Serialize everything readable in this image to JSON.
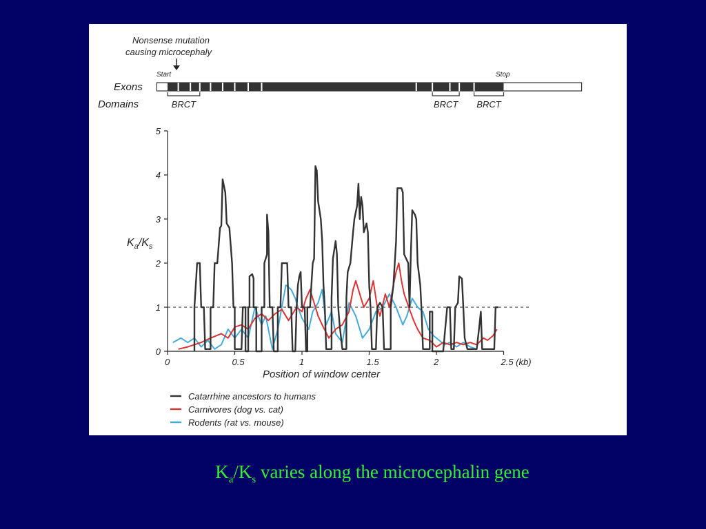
{
  "colors": {
    "background": "#020266",
    "caption": "#33ee33",
    "catarrhine": "#333333",
    "carnivores": "#dd3333",
    "rodents": "#44aadd"
  },
  "caption": {
    "main": "K",
    "sub_a": "a",
    "slash": "/K",
    "sub_s": "s",
    "rest": " varies along the microcephalin gene"
  },
  "gene_map": {
    "annotation_line1": "Nonsense mutation",
    "annotation_line2": "causing microcephaly",
    "start_label": "Start",
    "stop_label": "Stop",
    "exons_label": "Exons",
    "domains_label": "Domains",
    "domain_labels": [
      "BRCT",
      "BRCT",
      "BRCT"
    ],
    "coding_span_kb": [
      0,
      2.5
    ],
    "transcript_span_kb": [
      -0.08,
      3.08
    ],
    "exon_boundaries_kb": [
      0.08,
      0.17,
      0.24,
      0.32,
      0.41,
      0.5,
      0.6,
      0.7,
      1.85,
      1.97,
      2.1,
      2.17,
      2.28
    ],
    "domains_kb": [
      [
        0.0,
        0.24
      ],
      [
        1.97,
        2.17
      ],
      [
        2.28,
        2.5
      ]
    ],
    "mutation_kb": 0.07
  },
  "chart_data": {
    "type": "line",
    "title": "",
    "xlabel": "Position of window center",
    "ylabel_main": "K",
    "ylabel_sub1": "a",
    "ylabel_mid": "/K",
    "ylabel_sub2": "s",
    "xlim": [
      0,
      2.5
    ],
    "ylim": [
      0,
      5
    ],
    "x_ticks": [
      0,
      0.5,
      1,
      1.5,
      2,
      2.5
    ],
    "x_tick_labels": [
      "0",
      "0.5",
      "1",
      "1.5",
      "2",
      "2.5 (kb)"
    ],
    "y_ticks": [
      0,
      1,
      2,
      3,
      4,
      5
    ],
    "y_tick_labels": [
      "0",
      "1",
      "2",
      "3",
      "4",
      "5"
    ],
    "reference_line_y": 1,
    "legend_position": "bottom-left",
    "series": [
      {
        "name": "Catarrhine ancestors to humans",
        "color": "#333333",
        "points": [
          [
            0.2,
            0
          ],
          [
            0.2,
            1.0
          ],
          [
            0.22,
            2.0
          ],
          [
            0.24,
            2.0
          ],
          [
            0.25,
            1.0
          ],
          [
            0.27,
            1.0
          ],
          [
            0.28,
            0.05
          ],
          [
            0.32,
            0.05
          ],
          [
            0.32,
            1.0
          ],
          [
            0.34,
            1.0
          ],
          [
            0.35,
            2.0
          ],
          [
            0.37,
            2.0
          ],
          [
            0.39,
            2.8
          ],
          [
            0.4,
            2.85
          ],
          [
            0.41,
            3.9
          ],
          [
            0.43,
            3.6
          ],
          [
            0.44,
            2.9
          ],
          [
            0.46,
            2.8
          ],
          [
            0.48,
            2.0
          ],
          [
            0.49,
            1.0
          ],
          [
            0.5,
            1.0
          ],
          [
            0.5,
            0.05
          ],
          [
            0.55,
            0.05
          ],
          [
            0.56,
            1.0
          ],
          [
            0.58,
            1.0
          ],
          [
            0.58,
            0.0
          ],
          [
            0.6,
            0.0
          ],
          [
            0.6,
            1.0
          ],
          [
            0.61,
            1.0
          ],
          [
            0.61,
            1.7
          ],
          [
            0.63,
            1.75
          ],
          [
            0.64,
            1.65
          ],
          [
            0.64,
            1.0
          ],
          [
            0.66,
            1.0
          ],
          [
            0.66,
            0.0
          ],
          [
            0.7,
            0.0
          ],
          [
            0.7,
            1.0
          ],
          [
            0.72,
            1.0
          ],
          [
            0.72,
            2.0
          ],
          [
            0.74,
            2.2
          ],
          [
            0.74,
            3.1
          ],
          [
            0.75,
            2.7
          ],
          [
            0.76,
            1.0
          ],
          [
            0.78,
            1.0
          ],
          [
            0.79,
            0.0
          ],
          [
            0.82,
            0.0
          ],
          [
            0.82,
            1.0
          ],
          [
            0.84,
            1.0
          ],
          [
            0.85,
            2.0
          ],
          [
            0.89,
            2.0
          ],
          [
            0.9,
            1.0
          ],
          [
            0.92,
            1.0
          ],
          [
            0.93,
            0.0
          ],
          [
            0.95,
            0.0
          ],
          [
            0.96,
            1.0
          ],
          [
            0.97,
            1.5
          ],
          [
            0.98,
            1.7
          ],
          [
            0.99,
            1.8
          ],
          [
            1.0,
            1.0
          ],
          [
            1.02,
            1.0
          ],
          [
            1.03,
            0.0
          ],
          [
            1.04,
            0.0
          ],
          [
            1.04,
            1.0
          ],
          [
            1.06,
            1.0
          ],
          [
            1.08,
            2.0
          ],
          [
            1.09,
            2.1
          ],
          [
            1.1,
            4.2
          ],
          [
            1.11,
            4.1
          ],
          [
            1.12,
            3.4
          ],
          [
            1.14,
            3.0
          ],
          [
            1.15,
            2.5
          ],
          [
            1.16,
            1.5
          ],
          [
            1.17,
            1.0
          ],
          [
            1.18,
            0.05
          ],
          [
            1.22,
            0.05
          ],
          [
            1.22,
            1.2
          ],
          [
            1.23,
            2.1
          ],
          [
            1.25,
            2.5
          ],
          [
            1.26,
            2.2
          ],
          [
            1.27,
            1.0
          ],
          [
            1.28,
            0.6
          ],
          [
            1.3,
            0.05
          ],
          [
            1.33,
            0.05
          ],
          [
            1.33,
            1.2
          ],
          [
            1.34,
            1.8
          ],
          [
            1.36,
            2.0
          ],
          [
            1.38,
            2.7
          ],
          [
            1.39,
            3.0
          ],
          [
            1.41,
            3.3
          ],
          [
            1.42,
            3.8
          ],
          [
            1.43,
            3.0
          ],
          [
            1.44,
            3.5
          ],
          [
            1.45,
            3.3
          ],
          [
            1.46,
            2.7
          ],
          [
            1.48,
            2.9
          ],
          [
            1.49,
            2.7
          ],
          [
            1.5,
            1.5
          ],
          [
            1.51,
            1.0
          ],
          [
            1.52,
            0.05
          ],
          [
            1.55,
            0.05
          ],
          [
            1.56,
            1.0
          ],
          [
            1.58,
            1.1
          ],
          [
            1.6,
            1.0
          ],
          [
            1.61,
            0.05
          ],
          [
            1.66,
            0.05
          ],
          [
            1.66,
            1.0
          ],
          [
            1.68,
            1.5
          ],
          [
            1.7,
            2.5
          ],
          [
            1.71,
            3.7
          ],
          [
            1.74,
            3.7
          ],
          [
            1.75,
            3.6
          ],
          [
            1.76,
            2.2
          ],
          [
            1.79,
            2.0
          ],
          [
            1.8,
            1.0
          ],
          [
            1.81,
            2.2
          ],
          [
            1.82,
            3.2
          ],
          [
            1.84,
            3.1
          ],
          [
            1.85,
            3.0
          ],
          [
            1.86,
            2.0
          ],
          [
            1.88,
            1.5
          ],
          [
            1.89,
            0.9
          ],
          [
            1.9,
            0.05
          ],
          [
            1.95,
            0.05
          ],
          [
            1.95,
            0.9
          ],
          [
            1.97,
            0.9
          ],
          [
            1.97,
            0.0
          ],
          [
            2.05,
            0.0
          ],
          [
            2.08,
            1.0
          ],
          [
            2.1,
            1.0
          ],
          [
            2.11,
            0.05
          ],
          [
            2.13,
            0.05
          ],
          [
            2.14,
            1.0
          ],
          [
            2.16,
            1.1
          ],
          [
            2.17,
            1.7
          ],
          [
            2.19,
            1.65
          ],
          [
            2.2,
            1.0
          ],
          [
            2.21,
            0.3
          ],
          [
            2.23,
            0.05
          ],
          [
            2.3,
            0.05
          ],
          [
            2.32,
            0.6
          ],
          [
            2.33,
            0.9
          ],
          [
            2.34,
            0.05
          ],
          [
            2.43,
            0.05
          ],
          [
            2.44,
            1.0
          ],
          [
            2.46,
            1.0
          ]
        ]
      },
      {
        "name": "Carnivores (dog vs. cat)",
        "color": "#dd3333",
        "points": [
          [
            0.08,
            0.05
          ],
          [
            0.15,
            0.1
          ],
          [
            0.25,
            0.2
          ],
          [
            0.32,
            0.3
          ],
          [
            0.4,
            0.4
          ],
          [
            0.45,
            0.3
          ],
          [
            0.5,
            0.55
          ],
          [
            0.55,
            0.6
          ],
          [
            0.6,
            0.5
          ],
          [
            0.65,
            0.75
          ],
          [
            0.7,
            0.85
          ],
          [
            0.75,
            0.7
          ],
          [
            0.8,
            0.85
          ],
          [
            0.85,
            0.95
          ],
          [
            0.9,
            0.7
          ],
          [
            0.93,
            0.85
          ],
          [
            0.96,
            1.0
          ],
          [
            1.0,
            0.9
          ],
          [
            1.03,
            1.2
          ],
          [
            1.06,
            1.4
          ],
          [
            1.1,
            1.0
          ],
          [
            1.12,
            0.8
          ],
          [
            1.15,
            0.6
          ],
          [
            1.2,
            0.3
          ],
          [
            1.25,
            0.5
          ],
          [
            1.3,
            0.6
          ],
          [
            1.35,
            0.9
          ],
          [
            1.38,
            1.4
          ],
          [
            1.4,
            1.6
          ],
          [
            1.43,
            1.3
          ],
          [
            1.46,
            1.0
          ],
          [
            1.5,
            1.2
          ],
          [
            1.53,
            1.6
          ],
          [
            1.56,
            1.0
          ],
          [
            1.58,
            0.8
          ],
          [
            1.62,
            1.3
          ],
          [
            1.65,
            1.0
          ],
          [
            1.68,
            1.5
          ],
          [
            1.7,
            1.8
          ],
          [
            1.72,
            2.0
          ],
          [
            1.74,
            1.6
          ],
          [
            1.76,
            1.3
          ],
          [
            1.8,
            0.95
          ],
          [
            1.83,
            0.7
          ],
          [
            1.86,
            0.5
          ],
          [
            1.9,
            0.3
          ],
          [
            1.95,
            0.25
          ],
          [
            2.0,
            0.1
          ],
          [
            2.05,
            0.2
          ],
          [
            2.1,
            0.15
          ],
          [
            2.15,
            0.2
          ],
          [
            2.2,
            0.15
          ],
          [
            2.25,
            0.2
          ],
          [
            2.3,
            0.15
          ],
          [
            2.35,
            0.3
          ],
          [
            2.38,
            0.25
          ],
          [
            2.42,
            0.35
          ],
          [
            2.45,
            0.5
          ]
        ]
      },
      {
        "name": "Rodents (rat vs. mouse)",
        "color": "#44aadd",
        "points": [
          [
            0.04,
            0.2
          ],
          [
            0.1,
            0.3
          ],
          [
            0.15,
            0.2
          ],
          [
            0.2,
            0.3
          ],
          [
            0.25,
            0.1
          ],
          [
            0.3,
            0.25
          ],
          [
            0.35,
            0.05
          ],
          [
            0.4,
            0.15
          ],
          [
            0.45,
            0.5
          ],
          [
            0.5,
            0.3
          ],
          [
            0.55,
            0.5
          ],
          [
            0.6,
            0.3
          ],
          [
            0.65,
            1.0
          ],
          [
            0.7,
            0.6
          ],
          [
            0.73,
            0.8
          ],
          [
            0.78,
            0.05
          ],
          [
            0.82,
            0.5
          ],
          [
            0.85,
            1.0
          ],
          [
            0.88,
            1.5
          ],
          [
            0.92,
            1.4
          ],
          [
            0.95,
            1.2
          ],
          [
            0.97,
            1.0
          ],
          [
            1.0,
            0.75
          ],
          [
            1.05,
            0.5
          ],
          [
            1.08,
            0.9
          ],
          [
            1.12,
            1.1
          ],
          [
            1.15,
            1.4
          ],
          [
            1.18,
            0.6
          ],
          [
            1.22,
            0.9
          ],
          [
            1.25,
            0.4
          ],
          [
            1.3,
            0.2
          ],
          [
            1.35,
            1.1
          ],
          [
            1.4,
            0.8
          ],
          [
            1.45,
            0.3
          ],
          [
            1.5,
            0.5
          ],
          [
            1.55,
            0.9
          ],
          [
            1.6,
            1.0
          ],
          [
            1.65,
            1.3
          ],
          [
            1.7,
            1.0
          ],
          [
            1.75,
            0.6
          ],
          [
            1.78,
            0.8
          ],
          [
            1.82,
            1.2
          ],
          [
            1.86,
            1.0
          ],
          [
            1.9,
            0.9
          ],
          [
            1.94,
            0.5
          ],
          [
            1.98,
            0.35
          ],
          [
            2.02,
            0.25
          ],
          [
            2.06,
            0.15
          ],
          [
            2.1,
            0.2
          ],
          [
            2.15,
            0.1
          ],
          [
            2.2,
            0.2
          ],
          [
            2.25,
            0.1
          ],
          [
            2.3,
            0.05
          ]
        ]
      }
    ]
  }
}
